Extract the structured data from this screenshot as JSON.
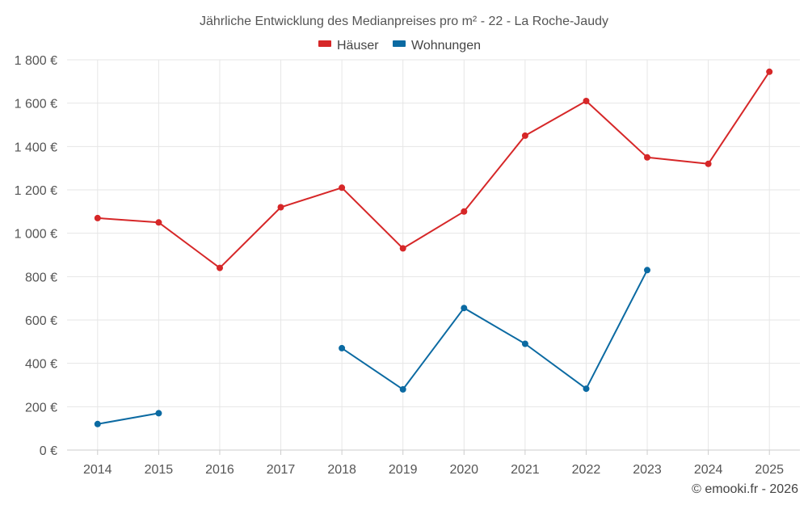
{
  "chart_data": {
    "type": "line",
    "title": "Jährliche Entwicklung des Medianpreises pro m² - 22 - La Roche-Jaudy",
    "categories": [
      "2014",
      "2015",
      "2016",
      "2017",
      "2018",
      "2019",
      "2020",
      "2021",
      "2022",
      "2023",
      "2024",
      "2025"
    ],
    "ylim": [
      0,
      1800
    ],
    "yticks": [
      0,
      200,
      400,
      600,
      800,
      1000,
      1200,
      1400,
      1600,
      1800
    ],
    "ytick_labels": [
      "0 €",
      "200 €",
      "400 €",
      "600 €",
      "800 €",
      "1 000 €",
      "1 200 €",
      "1 400 €",
      "1 600 €",
      "1 800 €"
    ],
    "grid": true,
    "legend_position": "top-center",
    "series": [
      {
        "name": "Häuser",
        "color": "#d62728",
        "values": [
          1070,
          1050,
          840,
          1120,
          1210,
          930,
          1100,
          1450,
          1610,
          1350,
          1320,
          1745
        ]
      },
      {
        "name": "Wohnungen",
        "color": "#0b6aa2",
        "values": [
          120,
          170,
          null,
          null,
          470,
          280,
          655,
          490,
          283,
          830,
          null,
          null
        ]
      }
    ]
  },
  "credit": "© emooki.fr - 2026"
}
